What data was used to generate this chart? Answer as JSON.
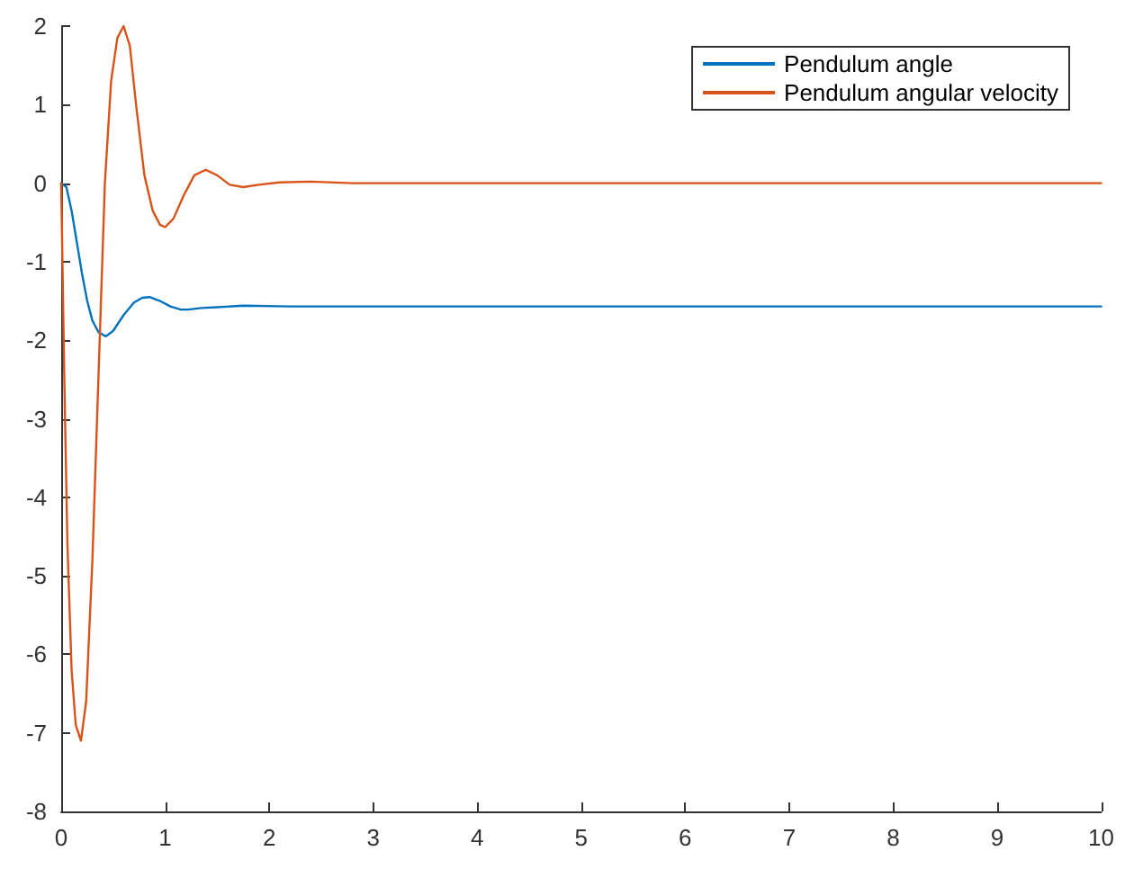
{
  "chart_data": {
    "type": "line",
    "xlim": [
      0,
      10
    ],
    "xticks": [
      0,
      1,
      2,
      3,
      4,
      5,
      6,
      7,
      8,
      9,
      10
    ],
    "ylim": [
      -8,
      2
    ],
    "yticks": [
      -8,
      -7,
      -6,
      -5,
      -4,
      -3,
      -2,
      -1,
      0,
      1,
      2
    ],
    "grid": false,
    "legend": "top right",
    "marker": "none",
    "line_style": "solid",
    "series": [
      {
        "name": "Pendulum angle",
        "color": "#0072bd",
        "x": [
          0,
          0.05,
          0.1,
          0.15,
          0.2,
          0.25,
          0.3,
          0.36,
          0.43,
          0.5,
          0.6,
          0.7,
          0.78,
          0.85,
          0.95,
          1.05,
          1.15,
          1.22,
          1.35,
          1.5,
          1.75,
          2.2,
          3,
          10
        ],
        "values": [
          0,
          -0.05,
          -0.35,
          -0.75,
          -1.15,
          -1.5,
          -1.75,
          -1.9,
          -1.95,
          -1.88,
          -1.68,
          -1.52,
          -1.46,
          -1.45,
          -1.5,
          -1.57,
          -1.61,
          -1.61,
          -1.59,
          -1.58,
          -1.56,
          -1.57,
          -1.57,
          -1.57
        ]
      },
      {
        "name": "Pendulum angular velocity",
        "color": "#d95319",
        "x": [
          0,
          0.03,
          0.06,
          0.1,
          0.14,
          0.19,
          0.24,
          0.3,
          0.36,
          0.42,
          0.48,
          0.54,
          0.6,
          0.66,
          0.72,
          0.8,
          0.88,
          0.95,
          1,
          1.08,
          1.18,
          1.28,
          1.39,
          1.5,
          1.62,
          1.75,
          1.9,
          2.1,
          2.4,
          2.8,
          3.5,
          10
        ],
        "values": [
          0,
          -2.5,
          -4.6,
          -6.2,
          -6.9,
          -7.1,
          -6.6,
          -4.8,
          -2.4,
          0,
          1.3,
          1.85,
          2,
          1.75,
          1,
          0.1,
          -0.35,
          -0.53,
          -0.56,
          -0.45,
          -0.15,
          0.1,
          0.17,
          0.1,
          -0.02,
          -0.05,
          -0.02,
          0.01,
          0.02,
          0,
          0,
          0
        ]
      }
    ]
  }
}
